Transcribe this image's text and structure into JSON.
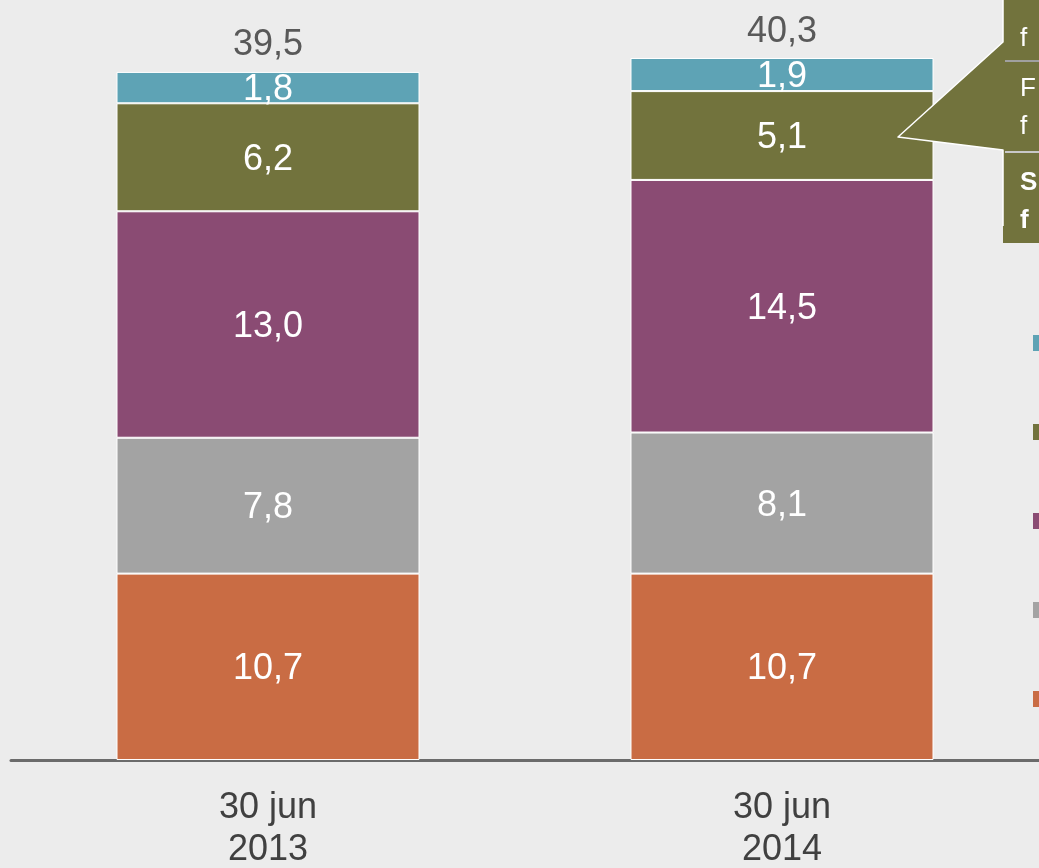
{
  "chart_data": {
    "type": "bar",
    "stacked": true,
    "categories": [
      "30 jun\n2013",
      "30 jun\n2014"
    ],
    "series": [
      {
        "color": "#c96c44",
        "values": [
          10.7,
          10.7
        ],
        "value_labels": [
          "10,7",
          "10,7"
        ]
      },
      {
        "color": "#a3a3a3",
        "values": [
          7.8,
          8.1
        ],
        "value_labels": [
          "7,8",
          "8,1"
        ]
      },
      {
        "color": "#8a4b73",
        "values": [
          13.0,
          14.5
        ],
        "value_labels": [
          "13,0",
          "14,5"
        ]
      },
      {
        "color": "#72733d",
        "values": [
          6.2,
          5.1
        ],
        "value_labels": [
          "6,2",
          "5,1"
        ]
      },
      {
        "color": "#5ea3b5",
        "values": [
          1.8,
          1.9
        ],
        "value_labels": [
          "1,8",
          "1,9"
        ]
      }
    ],
    "totals": [
      "39,5",
      "40,3"
    ],
    "tick_labels": "x",
    "annotations": [
      "f",
      "F\nf",
      "S\nf"
    ]
  }
}
